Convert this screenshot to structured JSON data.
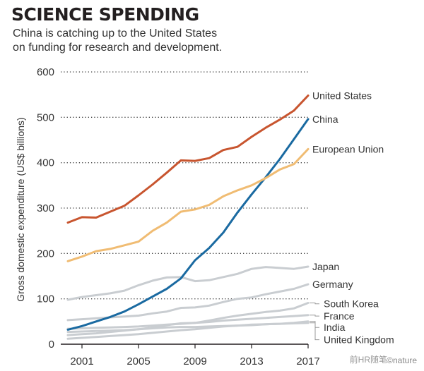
{
  "title": "SCIENCE SPENDING",
  "subtitle": {
    "line1": "China is catching up to the United States",
    "line2": "on funding for research and development."
  },
  "credit": "©nature",
  "watermark": "前HR随笔",
  "chart_data": {
    "type": "line",
    "ylabel": "Gross domestic expenditure (US$ billions)",
    "xlabel": "",
    "ylim": [
      0,
      600
    ],
    "yticks": [
      0,
      100,
      200,
      300,
      400,
      500,
      600
    ],
    "xlim": [
      1999.5,
      2017
    ],
    "xticks": [
      2001,
      2005,
      2009,
      2013,
      2017
    ],
    "grid": "horizontal dotted",
    "x": [
      2000,
      2001,
      2002,
      2003,
      2004,
      2005,
      2006,
      2007,
      2008,
      2009,
      2010,
      2011,
      2012,
      2013,
      2014,
      2015,
      2016,
      2017
    ],
    "series": [
      {
        "name": "United States",
        "color": "#c8552f",
        "width": 3,
        "values": [
          268,
          280,
          279,
          292,
          305,
          328,
          352,
          378,
          405,
          404,
          410,
          428,
          435,
          457,
          477,
          495,
          515,
          548
        ]
      },
      {
        "name": "China",
        "color": "#1a6aa1",
        "width": 3,
        "values": [
          32,
          40,
          50,
          60,
          72,
          88,
          105,
          122,
          145,
          185,
          212,
          246,
          290,
          330,
          368,
          408,
          452,
          496
        ]
      },
      {
        "name": "European Union",
        "color": "#f0bc73",
        "width": 3,
        "values": [
          183,
          193,
          205,
          210,
          218,
          226,
          250,
          268,
          292,
          297,
          307,
          326,
          339,
          350,
          366,
          385,
          397,
          430
        ]
      },
      {
        "name": "Japan",
        "color": "#c9cdd1",
        "width": 3,
        "values": [
          98,
          104,
          108,
          112,
          118,
          130,
          140,
          147,
          148,
          139,
          141,
          148,
          155,
          166,
          170,
          168,
          166,
          171
        ]
      },
      {
        "name": "Germany",
        "color": "#c9cdd1",
        "width": 3,
        "values": [
          53,
          55,
          57,
          59,
          61,
          63,
          68,
          72,
          80,
          81,
          85,
          93,
          100,
          103,
          110,
          116,
          122,
          132
        ]
      },
      {
        "name": "South Korea",
        "color": "#c9cdd1",
        "width": 3,
        "values": [
          20,
          22,
          24,
          27,
          30,
          33,
          37,
          42,
          46,
          47,
          52,
          58,
          63,
          67,
          71,
          74,
          79,
          91
        ]
      },
      {
        "name": "France",
        "color": "#c9cdd1",
        "width": 3,
        "values": [
          34,
          35,
          36,
          37,
          38,
          39,
          41,
          43,
          45,
          47,
          49,
          52,
          54,
          56,
          58,
          60,
          62,
          64
        ]
      },
      {
        "name": "India",
        "color": "#c9cdd1",
        "width": 3,
        "values": [
          12,
          14,
          16,
          18,
          20,
          22,
          25,
          28,
          31,
          33,
          36,
          39,
          41,
          43,
          44,
          45,
          47,
          50
        ]
      },
      {
        "name": "United Kingdom",
        "color": "#c9cdd1",
        "width": 3,
        "values": [
          27,
          28,
          29,
          30,
          31,
          33,
          35,
          37,
          38,
          38,
          39,
          40,
          41,
          42,
          44,
          45,
          46,
          47
        ]
      }
    ],
    "labels": [
      {
        "text": "United States",
        "at_value": 548,
        "leader": false
      },
      {
        "text": "China",
        "at_value": 496,
        "leader": false
      },
      {
        "text": "European Union",
        "at_value": 430,
        "leader": false
      },
      {
        "text": "Japan",
        "at_value": 171,
        "leader": false
      },
      {
        "text": "Germany",
        "at_value": 132,
        "leader": false
      },
      {
        "text": "South Korea",
        "at_value": 91,
        "leader": true,
        "label_value": 89
      },
      {
        "text": "France",
        "at_value": 64,
        "leader": true,
        "label_value": 62
      },
      {
        "text": "India",
        "at_value": 50,
        "leader": true,
        "label_value": 37
      },
      {
        "text": "United Kingdom",
        "at_value": 47,
        "leader": true,
        "label_value": 10
      }
    ]
  }
}
